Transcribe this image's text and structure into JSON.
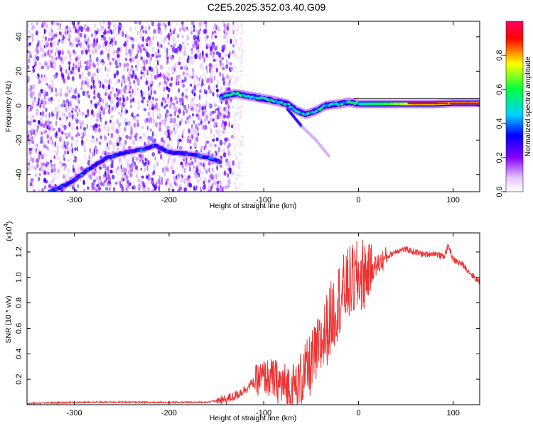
{
  "title": "C2E5.2025.352.03.40.G09",
  "chart_data": [
    {
      "type": "heatmap",
      "title": "C2E5.2025.352.03.40.G09",
      "xlabel": "Height of straight line (km)",
      "ylabel": "Frequency (Hz)",
      "xlim": [
        -350,
        128
      ],
      "ylim": [
        -50,
        49
      ],
      "xticks": [
        -300,
        -200,
        -100,
        0,
        100
      ],
      "xtick_labels": [
        "-300",
        "-200",
        "-100",
        "0",
        "100"
      ],
      "yticks": [
        -40,
        -20,
        0,
        20,
        40
      ],
      "ytick_labels": [
        "-40",
        "-20",
        "0",
        "20",
        "40"
      ],
      "colorbar": {
        "label": "Normalized spectral amplitude",
        "range": [
          0,
          1
        ],
        "ticks": [
          0,
          0.2,
          0.4,
          0.6,
          0.8
        ],
        "tick_labels": [
          "0.0",
          "0.2",
          "0.4",
          "0.6",
          "0.8"
        ],
        "colors": [
          "#ffffff",
          "#e6c8ff",
          "#8800ff",
          "#0000ff",
          "#00d0ff",
          "#00ff40",
          "#ffff00",
          "#ff0000",
          "#ff0066"
        ]
      },
      "features": {
        "noise_region_x": [
          -350,
          -132
        ],
        "main_track": [
          [
            -145,
            5
          ],
          [
            -130,
            7
          ],
          [
            -110,
            5
          ],
          [
            -90,
            3
          ],
          [
            -75,
            1
          ],
          [
            -65,
            -3
          ],
          [
            -55,
            -5
          ],
          [
            -45,
            -3
          ],
          [
            -35,
            0
          ],
          [
            -20,
            1
          ],
          [
            -10,
            2
          ],
          [
            0,
            1
          ],
          [
            20,
            1
          ],
          [
            50,
            1
          ],
          [
            80,
            1
          ],
          [
            100,
            1.5
          ],
          [
            128,
            1.5
          ]
        ],
        "secondary_track": [
          [
            -325,
            -50
          ],
          [
            -305,
            -45
          ],
          [
            -285,
            -37
          ],
          [
            -265,
            -30
          ],
          [
            -245,
            -27
          ],
          [
            -225,
            -25
          ],
          [
            -215,
            -23
          ],
          [
            -200,
            -27
          ],
          [
            -180,
            -28
          ],
          [
            -160,
            -30
          ],
          [
            -145,
            -33
          ]
        ],
        "branch_track": [
          [
            -75,
            -2
          ],
          [
            -60,
            -12
          ],
          [
            -45,
            -20
          ],
          [
            -30,
            -30
          ]
        ]
      }
    },
    {
      "type": "line",
      "xlabel": "Height of straight line (km)",
      "ylabel": "SNR (10 * v/v)",
      "ylabel_multiplier": "(x10",
      "ylabel_multiplier_exp": "4",
      "ylabel_multiplier_close": ")",
      "xlim": [
        -350,
        128
      ],
      "ylim": [
        0,
        13500
      ],
      "xticks": [
        -300,
        -200,
        -100,
        0,
        100
      ],
      "xtick_labels": [
        "-300",
        "-200",
        "-100",
        "0",
        "100"
      ],
      "yticks": [
        2000,
        4000,
        6000,
        8000,
        10000,
        12000
      ],
      "ytick_labels": [
        "0.2",
        "0.4",
        "0.6",
        "0.8",
        "1.0",
        "1.2"
      ],
      "series": [
        {
          "color": "#ee3333",
          "x": [
            -350,
            -300,
            -250,
            -200,
            -160,
            -140,
            -130,
            -120,
            -110,
            -100,
            -90,
            -80,
            -70,
            -60,
            -50,
            -40,
            -30,
            -20,
            -10,
            0,
            10,
            20,
            30,
            40,
            50,
            60,
            70,
            80,
            90,
            95,
            100,
            110,
            120,
            128
          ],
          "y": [
            100,
            180,
            200,
            180,
            200,
            400,
            700,
            1200,
            1800,
            2200,
            2000,
            1500,
            1200,
            2000,
            3200,
            4600,
            6600,
            8400,
            9500,
            10000,
            10500,
            11000,
            11600,
            12100,
            12200,
            12000,
            11800,
            11900,
            11600,
            12500,
            11400,
            11000,
            10200,
            9600
          ]
        }
      ]
    }
  ]
}
